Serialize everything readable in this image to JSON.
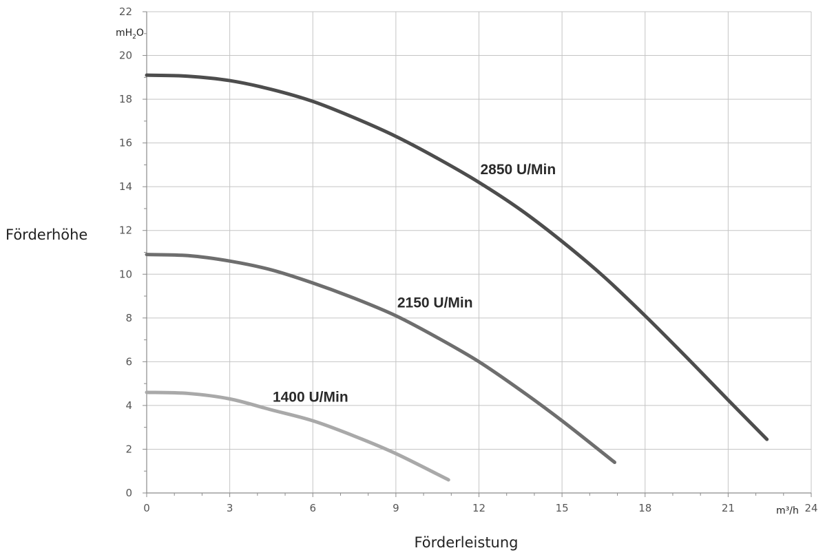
{
  "chart_data": {
    "type": "line",
    "xlabel": "Förderleistung",
    "ylabel": "Förderhöhe",
    "x_unit": "m³/h",
    "y_unit": {
      "base": "mH",
      "sub": "2",
      "tail": "O"
    },
    "xlim": [
      0,
      24
    ],
    "ylim": [
      0,
      22
    ],
    "x_ticks": [
      0,
      3,
      6,
      9,
      12,
      15,
      18,
      21,
      24
    ],
    "y_ticks": [
      0,
      2,
      4,
      6,
      8,
      10,
      12,
      14,
      16,
      18,
      20,
      22
    ],
    "grid": true,
    "legend": "none",
    "series": [
      {
        "name": "2850 U/Min",
        "color": "#4d4d4d",
        "x": [
          0,
          1.5,
          3,
          4.5,
          6,
          7.5,
          9,
          10.5,
          12,
          13.5,
          15,
          16.5,
          18,
          19.5,
          21,
          22.4
        ],
        "y": [
          19.1,
          19.05,
          18.85,
          18.45,
          17.9,
          17.15,
          16.3,
          15.3,
          14.2,
          12.95,
          11.5,
          9.9,
          8.1,
          6.2,
          4.25,
          2.45
        ]
      },
      {
        "name": "2150 U/Min",
        "color": "#6e6e6e",
        "x": [
          0,
          1.5,
          3,
          4.5,
          6,
          7.5,
          9,
          10.5,
          12,
          13.5,
          15,
          16.9
        ],
        "y": [
          10.9,
          10.85,
          10.6,
          10.2,
          9.6,
          8.9,
          8.1,
          7.1,
          6.0,
          4.7,
          3.3,
          1.4
        ]
      },
      {
        "name": "1400 U/Min",
        "color": "#a9a9a9",
        "x": [
          0,
          1.5,
          3,
          4.5,
          6,
          7.5,
          9,
          10.9
        ],
        "y": [
          4.6,
          4.55,
          4.3,
          3.8,
          3.3,
          2.6,
          1.8,
          0.6
        ]
      }
    ]
  }
}
